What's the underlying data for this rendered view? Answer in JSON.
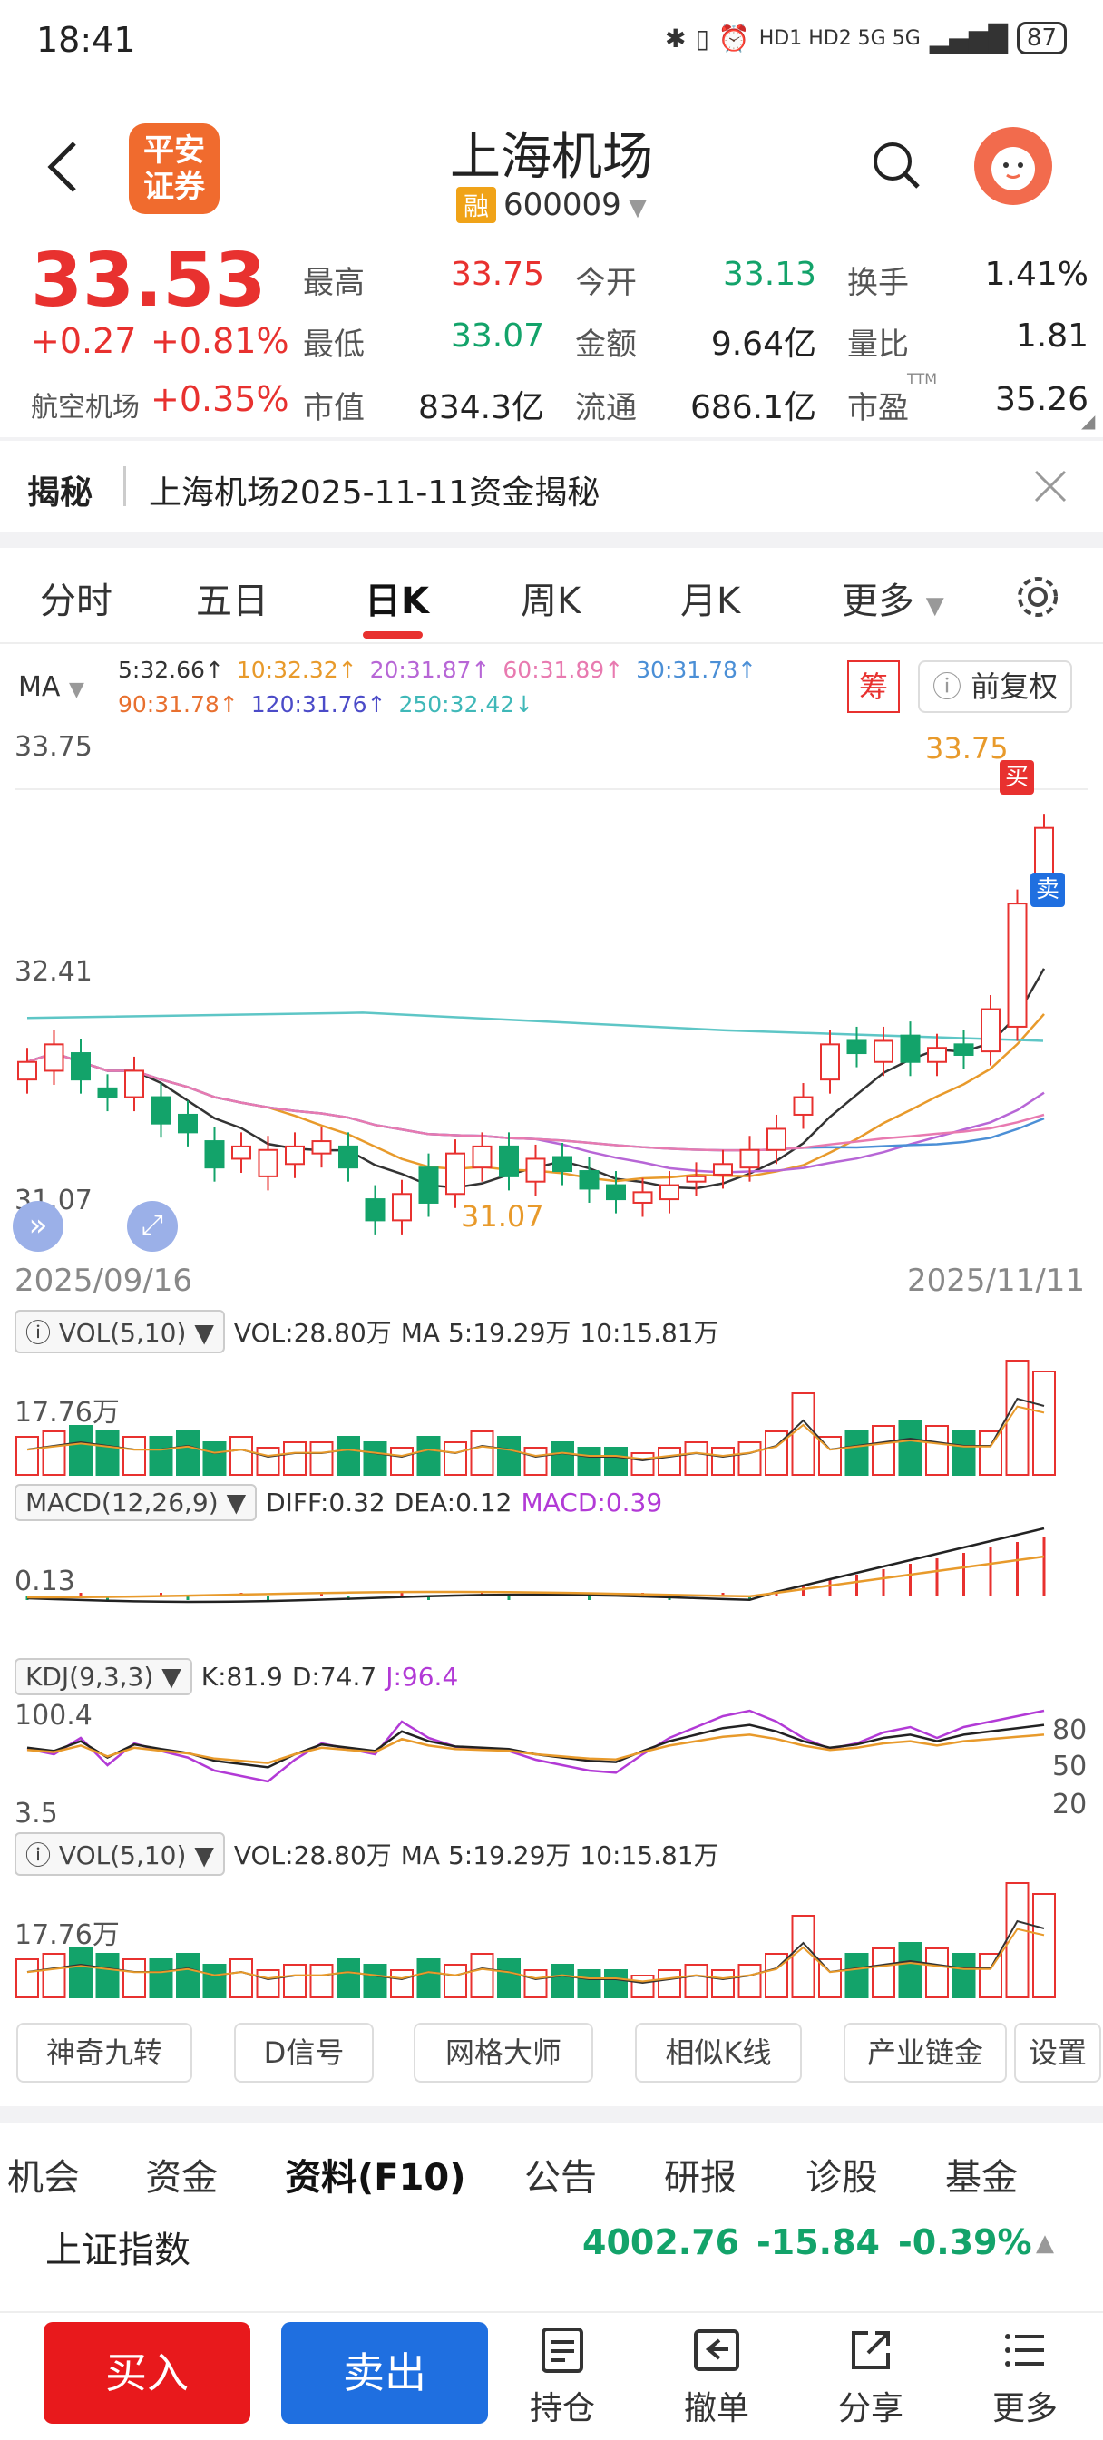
{
  "status_bar": {
    "time": "18:41",
    "network": "HD1 HD2 5G 5G",
    "battery": "87"
  },
  "header": {
    "title": "上海机场",
    "badge": "融",
    "code": "600009",
    "logo_text_1": "平安",
    "logo_text_2": "证券"
  },
  "quote": {
    "price": "33.53",
    "change": "+0.27",
    "change_pct": "+0.81%",
    "sector_name": "航空机场",
    "sector_pct": "+0.35%",
    "fields": [
      {
        "label": "最高",
        "value": "33.75",
        "color": "red"
      },
      {
        "label": "今开",
        "value": "33.13",
        "color": "green"
      },
      {
        "label": "换手",
        "value": "1.41%",
        "color": "dark"
      },
      {
        "label": "最低",
        "value": "33.07",
        "color": "green"
      },
      {
        "label": "金额",
        "value": "9.64亿",
        "color": "dark"
      },
      {
        "label": "量比",
        "value": "1.81",
        "color": "dark"
      },
      {
        "label": "市值",
        "value": "834.3亿",
        "color": "dark"
      },
      {
        "label": "流通",
        "value": "686.1亿",
        "color": "dark"
      },
      {
        "label": "市盈",
        "value": "35.26",
        "color": "dark",
        "sup": "TTM"
      }
    ]
  },
  "banner": {
    "tag": "揭秘",
    "text": "上海机场2025-11-11资金揭秘"
  },
  "ktabs": [
    "分时",
    "五日",
    "日K",
    "周K",
    "月K",
    "更多"
  ],
  "ma_legend": {
    "label": "MA",
    "row1": [
      {
        "text": "5:32.66↑",
        "color": "#333333"
      },
      {
        "text": "10:32.32↑",
        "color": "#e89a2b"
      },
      {
        "text": "20:31.87↑",
        "color": "#b766d6"
      },
      {
        "text": "60:31.89↑",
        "color": "#e87ab0"
      },
      {
        "text": "30:31.78↑",
        "color": "#4b8fd6"
      }
    ],
    "row2": [
      {
        "text": "90:31.78↑",
        "color": "#e8702f"
      },
      {
        "text": "120:31.76↑",
        "color": "#4b4bc8"
      },
      {
        "text": "250:32.42↓",
        "color": "#5ec6c6"
      }
    ],
    "chou": "筹",
    "fq": "前复权"
  },
  "kchart": {
    "y_high": "33.75",
    "y_mid": "32.41",
    "y_low": "31.07",
    "max_label": "33.75",
    "min_label": "31.07",
    "date_start": "2025/09/16",
    "date_end": "2025/11/11",
    "buy": "买",
    "sell": "卖"
  },
  "vol1": {
    "label": "VOL(5,10)",
    "vol": "VOL:28.80万",
    "ma5": "MA 5:19.29万",
    "ma10": "10:15.81万",
    "axis": "17.76万"
  },
  "macd": {
    "label": "MACD(12,26,9)",
    "diff": "DIFF:0.32",
    "dea": "DEA:0.12",
    "macd": "MACD:0.39",
    "axis": "0.13"
  },
  "kdj": {
    "label": "KDJ(9,3,3)",
    "k": "K:81.9",
    "d": "D:74.7",
    "j": "J:96.4",
    "top": "100.4",
    "bottom": "3.5",
    "r80": "80",
    "r50": "50",
    "r20": "20"
  },
  "vol2": {
    "label": "VOL(5,10)",
    "vol": "VOL:28.80万",
    "ma5": "MA 5:19.29万",
    "ma10": "10:15.81万",
    "axis": "17.76万"
  },
  "tools": [
    "神奇九转",
    "D信号",
    "网格大师",
    "相似K线",
    "产业链金",
    "设置"
  ],
  "bottom_tabs": [
    "机会",
    "资金",
    "资料(F10)",
    "公告",
    "研报",
    "诊股",
    "基金"
  ],
  "index_bar": {
    "name": "上证指数",
    "value": "4002.76",
    "change": "-15.84",
    "pct": "-0.39%"
  },
  "footer": {
    "buy": "买入",
    "sell": "卖出",
    "hold": "持仓",
    "cancel": "撤单",
    "share": "分享",
    "more": "更多"
  },
  "colors": {
    "up": "#e8312f",
    "down": "#13a36a",
    "accent": "#e8312f",
    "sell_btn": "#1f6fe0"
  }
}
